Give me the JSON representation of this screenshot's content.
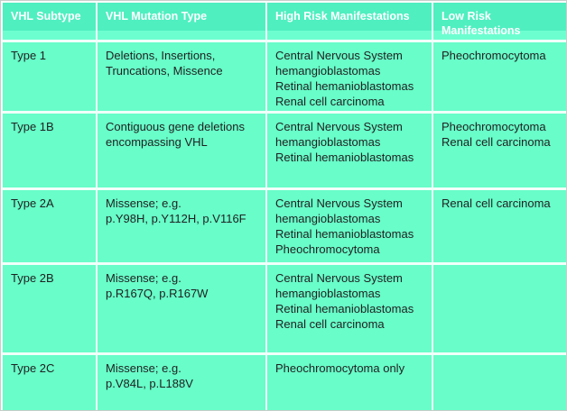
{
  "table": {
    "headers": [
      "VHL Subtype",
      "VHL Mutation Type",
      "High Risk Manifestations",
      "Low Risk Manifestations"
    ],
    "rows": [
      {
        "subtype": "Type 1",
        "mutation_lines": [
          "Deletions, Insertions,",
          "Truncations, Missence"
        ],
        "high_risk": [
          "Central Nervous System hemangioblastomas",
          "Retinal hemanioblastomas",
          "Renal cell carcinoma"
        ],
        "low_risk": [
          "Pheochromocytoma"
        ]
      },
      {
        "subtype": "Type 1B",
        "mutation_lines": [
          "Contiguous gene deletions",
          "encompassing VHL"
        ],
        "high_risk": [
          "Central Nervous System hemangioblastomas",
          "Retinal hemanioblastomas"
        ],
        "low_risk": [
          "Pheochromocytoma",
          "Renal cell carcinoma"
        ]
      },
      {
        "subtype": "Type 2A",
        "mutation_lines": [
          "Missense; e.g.",
          "p.Y98H, p.Y112H, p.V116F"
        ],
        "high_risk": [
          "Central Nervous System hemangioblastomas",
          "Retinal hemanioblastomas",
          "Pheochromocytoma"
        ],
        "low_risk": [
          "Renal cell carcinoma"
        ]
      },
      {
        "subtype": "Type 2B",
        "mutation_lines": [
          "Missense; e.g.",
          "p.R167Q, p.R167W"
        ],
        "high_risk": [
          "Central Nervous System hemangioblastomas",
          "Retinal hemanioblastomas",
          "Renal cell carcinoma"
        ],
        "low_risk": []
      },
      {
        "subtype": "Type 2C",
        "mutation_lines": [
          "Missense; e.g.",
          "p.V84L, p.L188V"
        ],
        "high_risk": [
          "Pheochromocytoma only"
        ],
        "low_risk": []
      }
    ]
  },
  "colors": {
    "header_bg": "#4fefc0",
    "header_bg_light": "#6dfed0",
    "header_text": "#ffffff",
    "cell_bg": "#68fdc9",
    "grid_line": "#f0fffa",
    "body_text": "#1f1f1f",
    "outer_border": "#c7cdc9"
  }
}
